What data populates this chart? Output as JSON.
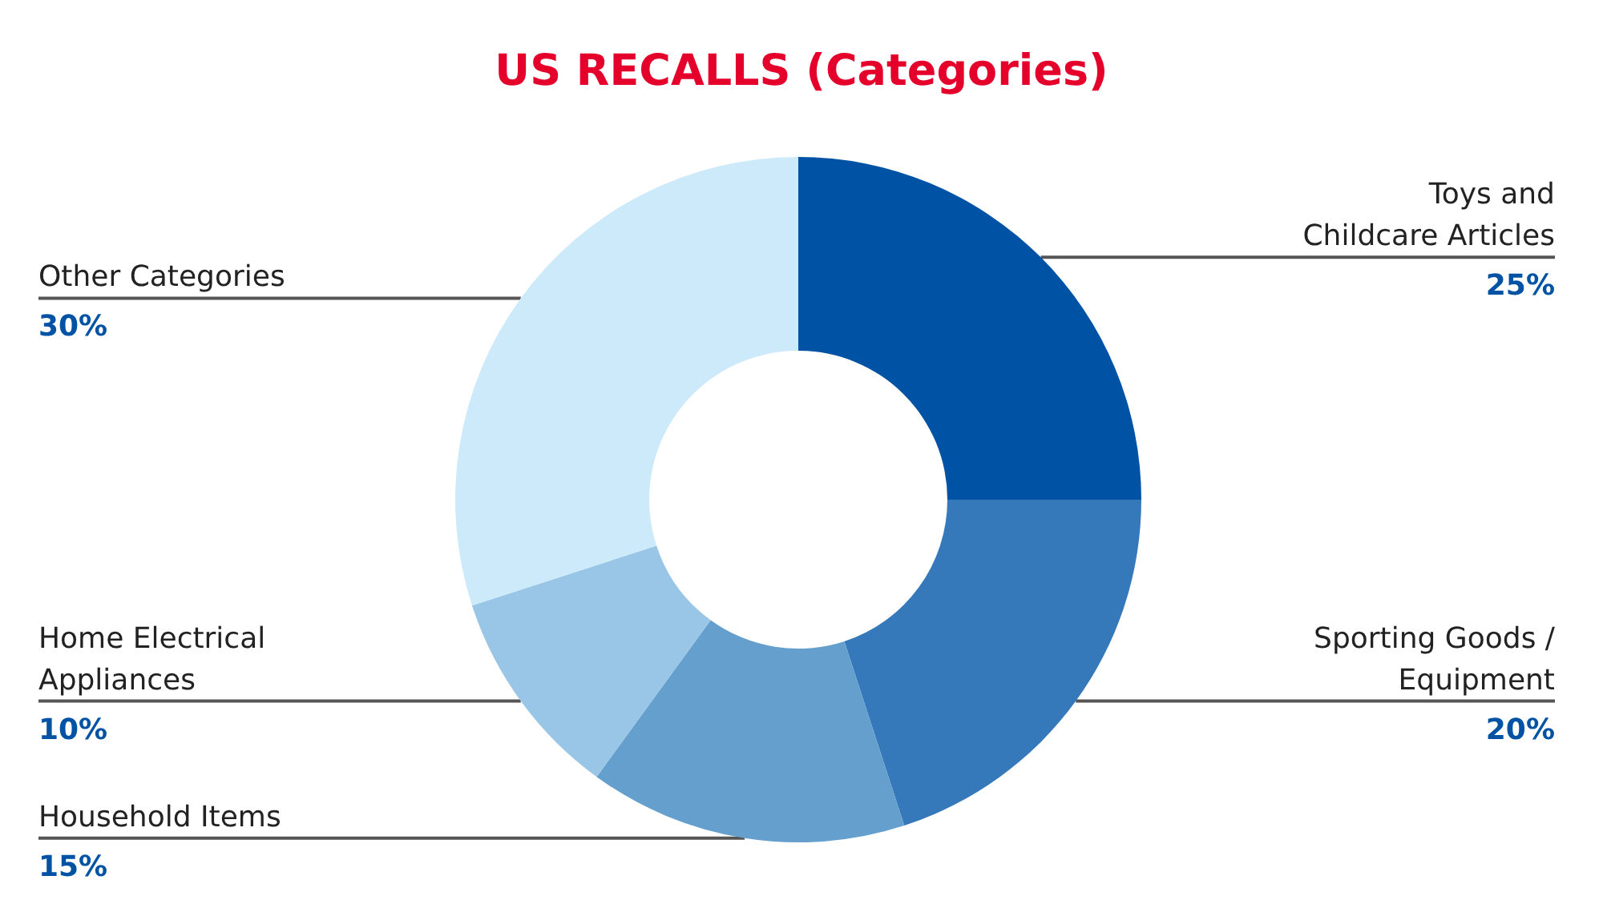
{
  "chart_data": {
    "type": "donut",
    "title": "US RECALLS (Categories)",
    "categories": [
      "Toys and\nChildcare Articles",
      "Sporting Goods /\nEquipment",
      "Household Items",
      "Home Electrical\nAppliances",
      "Other Categories"
    ],
    "values": [
      25,
      20,
      15,
      10,
      30
    ],
    "colors": [
      "#0053a4",
      "#3579bb",
      "#649fcd",
      "#99c5e6",
      "#cceafa"
    ],
    "value_labels": [
      "25%",
      "20%",
      "15%",
      "10%",
      "30%"
    ]
  }
}
